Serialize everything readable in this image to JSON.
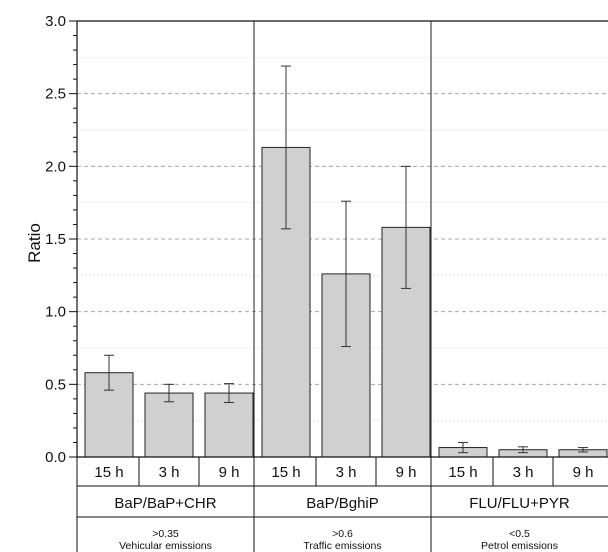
{
  "chart_data": {
    "type": "bar",
    "ylabel": "Ratio",
    "ylim": [
      0,
      3.0
    ],
    "yticks": [
      "0.0",
      "0.5",
      "1.0",
      "1.5",
      "2.0",
      "2.5",
      "3.0"
    ],
    "grid": "horizontal dashed",
    "bar_color": "#d0d0d0",
    "groups": [
      {
        "name": "BaP/BaP+CHR",
        "threshold": ">0.35",
        "source": "Vehicular emissions",
        "categories": [
          "15 h",
          "3 h",
          "9 h"
        ],
        "values": [
          0.58,
          0.44,
          0.44
        ],
        "errors": [
          0.12,
          0.06,
          0.065
        ]
      },
      {
        "name": "BaP/BghiP",
        "threshold": ">0.6",
        "source": "Traffic emissions",
        "categories": [
          "15 h",
          "3 h",
          "9 h"
        ],
        "values": [
          2.13,
          1.26,
          1.58
        ],
        "errors": [
          0.56,
          0.5,
          0.42
        ]
      },
      {
        "name": "FLU/FLU+PYR",
        "threshold": "<0.5",
        "source": "Petrol emissions",
        "categories": [
          "15 h",
          "3 h",
          "9 h"
        ],
        "values": [
          0.065,
          0.05,
          0.05
        ],
        "errors": [
          0.035,
          0.02,
          0.015
        ]
      }
    ]
  }
}
